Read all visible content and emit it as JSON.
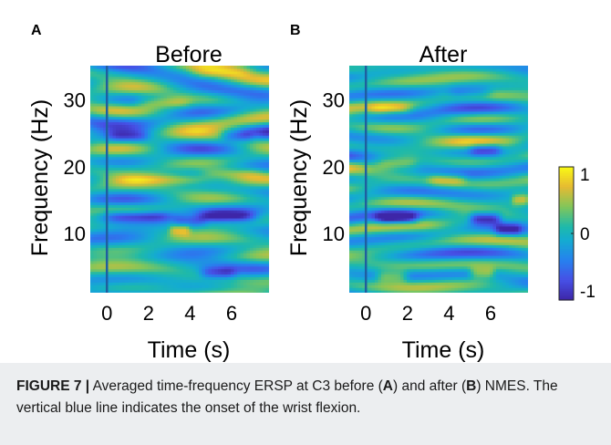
{
  "figure": {
    "panels": [
      {
        "letter": "A",
        "title": "Before",
        "xlabel": "Time (s)",
        "ylabel": "Frequency (Hz)",
        "show_ylabel": true
      },
      {
        "letter": "B",
        "title": "After",
        "xlabel": "Time (s)",
        "ylabel": "Frequency (Hz)",
        "show_ylabel": true
      }
    ],
    "colorbar": {
      "ticks": [
        "1",
        "0",
        "-1"
      ],
      "values": [
        1,
        0,
        -1
      ]
    },
    "caption": {
      "label": "FIGURE 7 |",
      "t1": " Averaged time-frequency ERSP at C3 before (",
      "a": "A",
      "t2": ") and after (",
      "b": "B",
      "t3": ") NMES. The vertical blue line indicates the onset of the wrist flexion."
    }
  },
  "chart_data": {
    "type": "heatmap",
    "colormap": "parula",
    "clim": [
      -1,
      1
    ],
    "xlim": [
      -0.8,
      7.8
    ],
    "ylim": [
      1,
      35
    ],
    "xticks": [
      0,
      2,
      4,
      6
    ],
    "xtick_labels": [
      "0",
      "2",
      "4",
      "6"
    ],
    "yticks": [
      10,
      20,
      30
    ],
    "ytick_labels": [
      "10",
      "20",
      "30"
    ],
    "onset_time": 0,
    "panels": [
      {
        "name": "Before",
        "bands": [
          {
            "f": 12.5,
            "t0": -0.3,
            "t1": 3.2,
            "v": -1.0
          },
          {
            "f": 12.5,
            "t0": 4.5,
            "t1": 7.2,
            "v": -0.95
          },
          {
            "f": 11.8,
            "t0": 3.2,
            "t1": 4.8,
            "v": -0.5
          },
          {
            "f": 18.0,
            "t0": 0.2,
            "t1": 5.0,
            "v": 0.75
          },
          {
            "f": 19.0,
            "t0": 4.5,
            "t1": 7.5,
            "v": 0.55
          },
          {
            "f": 29.5,
            "t0": 1.5,
            "t1": 4.0,
            "v": 0.55
          },
          {
            "f": 34.0,
            "t0": 4.0,
            "t1": 7.0,
            "v": 0.55
          },
          {
            "f": 10.5,
            "t0": 3.0,
            "t1": 4.0,
            "v": 0.6
          },
          {
            "f": 24.5,
            "t0": 0.0,
            "t1": 2.0,
            "v": -0.55
          },
          {
            "f": 24.5,
            "t0": 5.5,
            "t1": 7.0,
            "v": -0.5
          },
          {
            "f": 4.0,
            "t0": 4.5,
            "t1": 6.2,
            "v": -0.6
          }
        ]
      },
      {
        "name": "After",
        "bands": [
          {
            "f": 12.2,
            "t0": 0.5,
            "t1": 2.5,
            "v": -1.0
          },
          {
            "f": 12.2,
            "t0": 5.0,
            "t1": 6.5,
            "v": -1.0
          },
          {
            "f": 10.5,
            "t0": 6.2,
            "t1": 7.5,
            "v": -0.7
          },
          {
            "f": 3.5,
            "t0": 0.5,
            "t1": 2.0,
            "v": 0.7
          },
          {
            "f": 4.0,
            "t0": 5.0,
            "t1": 6.2,
            "v": 0.65
          },
          {
            "f": 18.0,
            "t0": 3.0,
            "t1": 4.8,
            "v": 0.55
          },
          {
            "f": 20.5,
            "t0": 0.5,
            "t1": 2.5,
            "v": 0.45
          },
          {
            "f": 28.5,
            "t0": 0.2,
            "t1": 2.2,
            "v": 0.45
          },
          {
            "f": 22.5,
            "t0": 5.0,
            "t1": 6.5,
            "v": -0.6
          },
          {
            "f": 31.0,
            "t0": 4.0,
            "t1": 6.0,
            "v": -0.45
          },
          {
            "f": 15.0,
            "t0": 7.0,
            "t1": 7.8,
            "v": 0.55
          }
        ]
      }
    ]
  }
}
